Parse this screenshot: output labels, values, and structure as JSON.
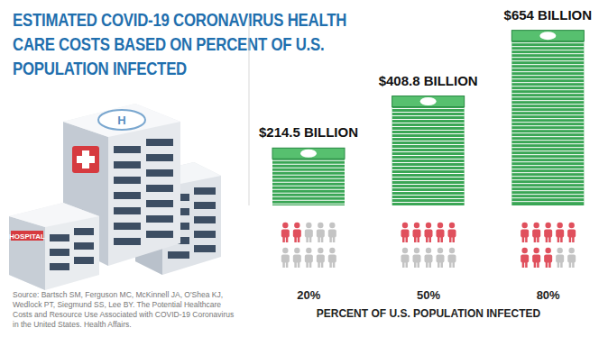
{
  "chart_data": {
    "type": "bar",
    "title": "ESTIMATED COVID-19 CORONAVIRUS HEALTH CARE COSTS BASED ON PERCENT OF U.S. POPULATION INFECTED",
    "x_label": "PERCENT OF U.S. POPULATION INFECTED",
    "categories": [
      "20%",
      "50%",
      "80%"
    ],
    "values": [
      214.5,
      408.8,
      654
    ],
    "value_labels": [
      "$214.5 BILLION",
      "$408.8 BILLION",
      "$654 BILLION"
    ],
    "color": "#3aa655",
    "ylim": [
      0,
      700
    ],
    "data_labels": true,
    "tick_labels": "x",
    "grid": false,
    "source": "Source: Bartsch SM, Ferguson MC, McKinnell JA, O'Shea KJ, Wedlock PT, Siegmund SS, Lee BY. The Potential Healthcare Costs and Resource Use Associated with COVID-19 Coronavirus in the United States. Health Affairs.",
    "annotations": [
      "HOSPITAL",
      "H"
    ]
  }
}
